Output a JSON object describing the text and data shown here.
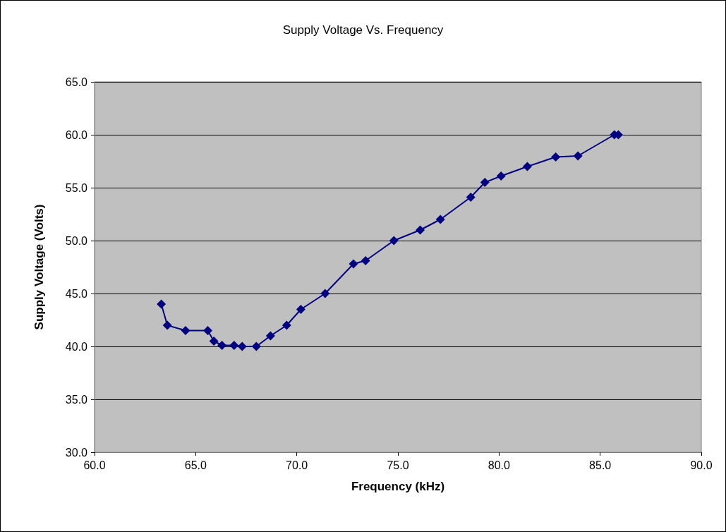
{
  "chart_data": {
    "type": "line",
    "title": "Supply Voltage Vs. Frequency",
    "xlabel": "Frequency (kHz)",
    "ylabel": "Supply Voltage (Volts)",
    "x": [
      63.3,
      63.6,
      64.5,
      65.6,
      65.9,
      66.3,
      66.9,
      67.3,
      68.0,
      68.7,
      69.5,
      70.2,
      71.4,
      72.8,
      73.4,
      74.8,
      76.1,
      77.1,
      78.6,
      79.3,
      80.1,
      81.4,
      82.8,
      83.9,
      85.7,
      85.9
    ],
    "series": [
      {
        "color": "#000080",
        "values": [
          44.0,
          42.0,
          41.5,
          41.5,
          40.5,
          40.1,
          40.1,
          40.0,
          40.0,
          41.0,
          42.0,
          43.5,
          45.0,
          47.8,
          48.1,
          50.0,
          51.0,
          52.0,
          54.1,
          55.5,
          56.1,
          57.0,
          57.9,
          58.0,
          60.0,
          60.0
        ]
      }
    ],
    "xlim": [
      60,
      90
    ],
    "ylim": [
      30,
      65
    ],
    "xticks": [
      {
        "value": 60,
        "label": "60.0"
      },
      {
        "value": 65,
        "label": "65.0"
      },
      {
        "value": 70,
        "label": "70.0"
      },
      {
        "value": 75,
        "label": "75.0"
      },
      {
        "value": 80,
        "label": "80.0"
      },
      {
        "value": 85,
        "label": "85.0"
      },
      {
        "value": 90,
        "label": "90.0"
      }
    ],
    "yticks": [
      {
        "value": 30,
        "label": "30.0"
      },
      {
        "value": 35,
        "label": "35.0"
      },
      {
        "value": 40,
        "label": "40.0"
      },
      {
        "value": 45,
        "label": "45.0"
      },
      {
        "value": 50,
        "label": "50.0"
      },
      {
        "value": 55,
        "label": "55.0"
      },
      {
        "value": 60,
        "label": "60.0"
      },
      {
        "value": 65,
        "label": "65.0"
      }
    ],
    "grid": "y",
    "marker": "diamond",
    "line_style": "solid"
  }
}
